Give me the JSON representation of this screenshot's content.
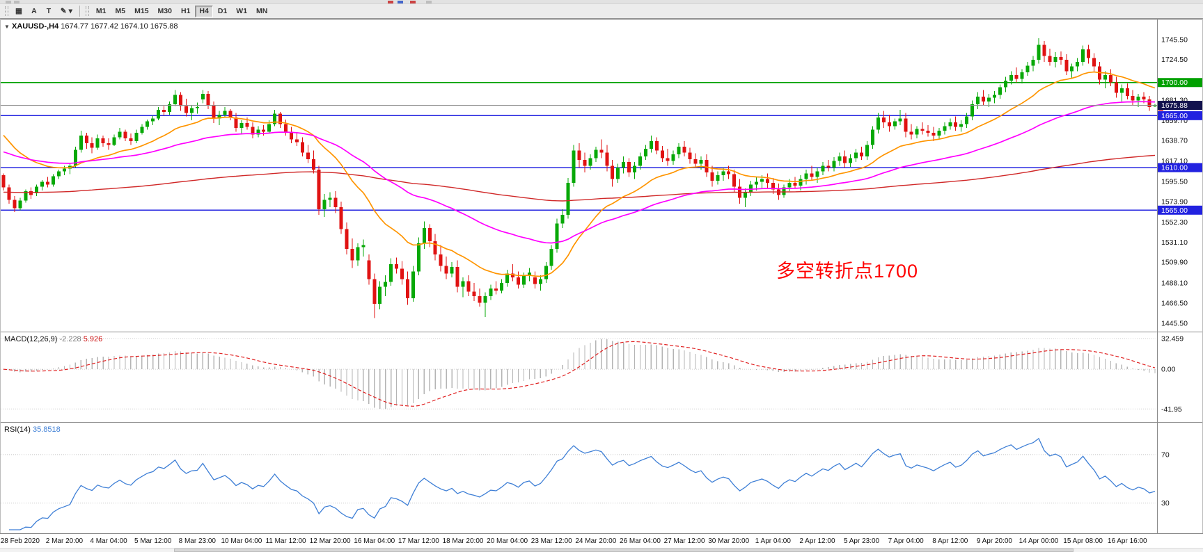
{
  "toolbar": {
    "tools": [
      {
        "name": "templates-grid",
        "label": "▦"
      },
      {
        "name": "label-tool",
        "label": "A"
      },
      {
        "name": "text-tool",
        "label": "T"
      },
      {
        "name": "draw-tool",
        "label": "✎",
        "caret": "▾"
      }
    ],
    "timeframes": [
      "M1",
      "M5",
      "M15",
      "M30",
      "H1",
      "H4",
      "D1",
      "W1",
      "MN"
    ],
    "active_timeframe": "H4"
  },
  "chart": {
    "symbol_title": "XAUUSD-,H4",
    "ohlc_text": "1674.77 1677.42 1674.10 1675.88",
    "up_color": "#07A807",
    "down_color": "#E01212",
    "current_price": {
      "value": 1675.88,
      "label": "1675.88",
      "bg": "#12124E"
    },
    "price_axis": {
      "min": 1438,
      "max": 1766,
      "ticks": [
        1745.5,
        1724.5,
        1681.3,
        1659.7,
        1638.7,
        1617.1,
        1595.5,
        1573.9,
        1552.3,
        1531.1,
        1509.9,
        1488.1,
        1466.5,
        1445.5
      ]
    },
    "hlines": [
      {
        "price": 1700,
        "label": "1700.00",
        "color": "#00A000"
      },
      {
        "price": 1665,
        "label": "1665.00",
        "color": "#2222E0"
      },
      {
        "price": 1610,
        "label": "1610.00",
        "color": "#2222E0"
      },
      {
        "price": 1565,
        "label": "1565.00",
        "color": "#2222E0"
      }
    ],
    "overlays": [
      {
        "name": "ma-slow-line",
        "period": 240,
        "seed": 1584,
        "color": "#D02828",
        "width": 1.4
      },
      {
        "name": "ma-fast-line",
        "period": 20,
        "seed": 1650,
        "color": "#FF9500",
        "width": 1.7
      },
      {
        "name": "ma-mid-line",
        "period": 55,
        "seed": 1628,
        "color": "#FF00FF",
        "width": 1.7
      }
    ],
    "annotation": {
      "text": "多空转折点1700",
      "color": "#FF0000"
    },
    "label_start": 3,
    "label_step": 8,
    "x_labels": [
      "28 Feb 2020",
      "2 Mar 20:00",
      "4 Mar 04:00",
      "5 Mar 12:00",
      "8 Mar 23:00",
      "10 Mar 04:00",
      "11 Mar 12:00",
      "12 Mar 20:00",
      "16 Mar 04:00",
      "17 Mar 12:00",
      "18 Mar 20:00",
      "20 Mar 04:00",
      "23 Mar 12:00",
      "24 Mar 20:00",
      "26 Mar 04:00",
      "27 Mar 12:00",
      "30 Mar 20:00",
      "1 Apr 04:00",
      "2 Apr 12:00",
      "5 Apr 23:00",
      "7 Apr 04:00",
      "8 Apr 12:00",
      "9 Apr 20:00",
      "14 Apr 00:00",
      "15 Apr 08:00",
      "16 Apr 16:00"
    ],
    "candles": [
      [
        1602,
        1604,
        1586,
        1589
      ],
      [
        1589,
        1592,
        1572,
        1576
      ],
      [
        1576,
        1580,
        1563,
        1567
      ],
      [
        1567,
        1578,
        1565,
        1575
      ],
      [
        1575,
        1587,
        1573,
        1585
      ],
      [
        1585,
        1589,
        1577,
        1581
      ],
      [
        1583,
        1592,
        1580,
        1590
      ],
      [
        1590,
        1597,
        1586,
        1595
      ],
      [
        1595,
        1600,
        1589,
        1592
      ],
      [
        1592,
        1603,
        1590,
        1601
      ],
      [
        1601,
        1608,
        1598,
        1606
      ],
      [
        1606,
        1612,
        1602,
        1609
      ],
      [
        1609,
        1615,
        1603,
        1612
      ],
      [
        1612,
        1632,
        1610,
        1629
      ],
      [
        1629,
        1649,
        1626,
        1644
      ],
      [
        1644,
        1647,
        1630,
        1636
      ],
      [
        1636,
        1642,
        1625,
        1631
      ],
      [
        1631,
        1645,
        1629,
        1641
      ],
      [
        1641,
        1644,
        1632,
        1636
      ],
      [
        1636,
        1641,
        1629,
        1634
      ],
      [
        1634,
        1645,
        1633,
        1642
      ],
      [
        1642,
        1652,
        1640,
        1648
      ],
      [
        1648,
        1650,
        1638,
        1641
      ],
      [
        1641,
        1646,
        1634,
        1638
      ],
      [
        1638,
        1650,
        1636,
        1647
      ],
      [
        1647,
        1656,
        1645,
        1653
      ],
      [
        1653,
        1661,
        1650,
        1659
      ],
      [
        1659,
        1665,
        1655,
        1662
      ],
      [
        1662,
        1674,
        1660,
        1671
      ],
      [
        1671,
        1675,
        1665,
        1669
      ],
      [
        1669,
        1680,
        1666,
        1677
      ],
      [
        1677,
        1692,
        1675,
        1687
      ],
      [
        1687,
        1690,
        1670,
        1675
      ],
      [
        1675,
        1683,
        1664,
        1668
      ],
      [
        1668,
        1676,
        1660,
        1673
      ],
      [
        1673,
        1679,
        1667,
        1674
      ],
      [
        1682,
        1692,
        1678,
        1688
      ],
      [
        1688,
        1691,
        1672,
        1676
      ],
      [
        1676,
        1680,
        1657,
        1662
      ],
      [
        1662,
        1670,
        1655,
        1666
      ],
      [
        1666,
        1674,
        1663,
        1670
      ],
      [
        1670,
        1672,
        1660,
        1663
      ],
      [
        1663,
        1668,
        1648,
        1652
      ],
      [
        1652,
        1660,
        1645,
        1657
      ],
      [
        1657,
        1663,
        1650,
        1653
      ],
      [
        1653,
        1658,
        1641,
        1645
      ],
      [
        1645,
        1654,
        1642,
        1650
      ],
      [
        1650,
        1655,
        1644,
        1648
      ],
      [
        1648,
        1660,
        1646,
        1656
      ],
      [
        1656,
        1671,
        1654,
        1667
      ],
      [
        1667,
        1669,
        1652,
        1656
      ],
      [
        1656,
        1661,
        1644,
        1648
      ],
      [
        1648,
        1653,
        1636,
        1640
      ],
      [
        1640,
        1647,
        1633,
        1637
      ],
      [
        1637,
        1642,
        1622,
        1626
      ],
      [
        1626,
        1634,
        1615,
        1619
      ],
      [
        1619,
        1628,
        1604,
        1608
      ],
      [
        1608,
        1612,
        1560,
        1566
      ],
      [
        1566,
        1582,
        1558,
        1576
      ],
      [
        1576,
        1584,
        1568,
        1578
      ],
      [
        1578,
        1585,
        1562,
        1568
      ],
      [
        1568,
        1574,
        1540,
        1545
      ],
      [
        1545,
        1552,
        1518,
        1524
      ],
      [
        1524,
        1535,
        1504,
        1512
      ],
      [
        1512,
        1530,
        1506,
        1526
      ],
      [
        1526,
        1534,
        1516,
        1528
      ],
      [
        1512,
        1518,
        1486,
        1492
      ],
      [
        1492,
        1498,
        1451,
        1466
      ],
      [
        1466,
        1490,
        1460,
        1484
      ],
      [
        1484,
        1496,
        1474,
        1489
      ],
      [
        1489,
        1514,
        1485,
        1508
      ],
      [
        1508,
        1515,
        1498,
        1503
      ],
      [
        1503,
        1511,
        1486,
        1492
      ],
      [
        1492,
        1500,
        1465,
        1472
      ],
      [
        1472,
        1506,
        1468,
        1500
      ],
      [
        1500,
        1536,
        1496,
        1530
      ],
      [
        1530,
        1553,
        1524,
        1546
      ],
      [
        1546,
        1550,
        1526,
        1532
      ],
      [
        1532,
        1540,
        1512,
        1518
      ],
      [
        1518,
        1528,
        1500,
        1506
      ],
      [
        1506,
        1516,
        1492,
        1498
      ],
      [
        1498,
        1510,
        1494,
        1505
      ],
      [
        1505,
        1512,
        1478,
        1484
      ],
      [
        1484,
        1494,
        1473,
        1490
      ],
      [
        1490,
        1496,
        1474,
        1479
      ],
      [
        1479,
        1488,
        1469,
        1474
      ],
      [
        1474,
        1482,
        1463,
        1467
      ],
      [
        1467,
        1478,
        1452,
        1474
      ],
      [
        1474,
        1486,
        1470,
        1482
      ],
      [
        1482,
        1490,
        1476,
        1480
      ],
      [
        1480,
        1492,
        1477,
        1488
      ],
      [
        1488,
        1502,
        1484,
        1498
      ],
      [
        1498,
        1508,
        1490,
        1494
      ],
      [
        1494,
        1500,
        1482,
        1486
      ],
      [
        1486,
        1499,
        1483,
        1496
      ],
      [
        1496,
        1504,
        1490,
        1499
      ],
      [
        1494,
        1500,
        1482,
        1487
      ],
      [
        1487,
        1496,
        1480,
        1492
      ],
      [
        1492,
        1510,
        1488,
        1506
      ],
      [
        1506,
        1528,
        1502,
        1524
      ],
      [
        1524,
        1556,
        1520,
        1551
      ],
      [
        1551,
        1566,
        1546,
        1560
      ],
      [
        1560,
        1599,
        1556,
        1594
      ],
      [
        1594,
        1634,
        1590,
        1628
      ],
      [
        1628,
        1636,
        1610,
        1618
      ],
      [
        1618,
        1626,
        1605,
        1612
      ],
      [
        1612,
        1624,
        1608,
        1620
      ],
      [
        1620,
        1632,
        1616,
        1629
      ],
      [
        1629,
        1640,
        1620,
        1626
      ],
      [
        1626,
        1634,
        1606,
        1612
      ],
      [
        1612,
        1618,
        1590,
        1598
      ],
      [
        1598,
        1614,
        1594,
        1610
      ],
      [
        1610,
        1622,
        1604,
        1616
      ],
      [
        1616,
        1620,
        1600,
        1605
      ],
      [
        1605,
        1616,
        1598,
        1612
      ],
      [
        1612,
        1626,
        1608,
        1622
      ],
      [
        1622,
        1634,
        1618,
        1630
      ],
      [
        1630,
        1644,
        1626,
        1638
      ],
      [
        1638,
        1642,
        1624,
        1628
      ],
      [
        1628,
        1633,
        1616,
        1620
      ],
      [
        1620,
        1630,
        1612,
        1617
      ],
      [
        1617,
        1628,
        1613,
        1624
      ],
      [
        1624,
        1636,
        1620,
        1632
      ],
      [
        1632,
        1638,
        1622,
        1626
      ],
      [
        1626,
        1631,
        1614,
        1619
      ],
      [
        1619,
        1625,
        1610,
        1614
      ],
      [
        1614,
        1622,
        1608,
        1618
      ],
      [
        1618,
        1624,
        1600,
        1605
      ],
      [
        1605,
        1612,
        1590,
        1596
      ],
      [
        1596,
        1606,
        1592,
        1602
      ],
      [
        1602,
        1610,
        1596,
        1606
      ],
      [
        1606,
        1612,
        1598,
        1603
      ],
      [
        1603,
        1608,
        1584,
        1590
      ],
      [
        1590,
        1598,
        1572,
        1578
      ],
      [
        1578,
        1588,
        1568,
        1584
      ],
      [
        1584,
        1596,
        1580,
        1592
      ],
      [
        1592,
        1600,
        1586,
        1595
      ],
      [
        1595,
        1602,
        1588,
        1598
      ],
      [
        1598,
        1604,
        1588,
        1594
      ],
      [
        1594,
        1599,
        1582,
        1587
      ],
      [
        1587,
        1593,
        1576,
        1581
      ],
      [
        1581,
        1592,
        1578,
        1589
      ],
      [
        1589,
        1598,
        1585,
        1594
      ],
      [
        1594,
        1600,
        1588,
        1591
      ],
      [
        1591,
        1602,
        1586,
        1598
      ],
      [
        1598,
        1608,
        1592,
        1604
      ],
      [
        1604,
        1612,
        1596,
        1600
      ],
      [
        1600,
        1610,
        1594,
        1606
      ],
      [
        1606,
        1616,
        1602,
        1612
      ],
      [
        1612,
        1618,
        1606,
        1610
      ],
      [
        1610,
        1621,
        1606,
        1617
      ],
      [
        1617,
        1626,
        1612,
        1622
      ],
      [
        1622,
        1628,
        1610,
        1615
      ],
      [
        1615,
        1624,
        1611,
        1620
      ],
      [
        1620,
        1630,
        1616,
        1626
      ],
      [
        1626,
        1632,
        1618,
        1622
      ],
      [
        1622,
        1638,
        1618,
        1634
      ],
      [
        1634,
        1654,
        1630,
        1650
      ],
      [
        1650,
        1668,
        1646,
        1663
      ],
      [
        1663,
        1670,
        1652,
        1658
      ],
      [
        1658,
        1666,
        1648,
        1654
      ],
      [
        1654,
        1662,
        1650,
        1659
      ],
      [
        1659,
        1671,
        1655,
        1662
      ],
      [
        1662,
        1668,
        1642,
        1648
      ],
      [
        1648,
        1656,
        1640,
        1645
      ],
      [
        1645,
        1654,
        1641,
        1651
      ],
      [
        1651,
        1658,
        1645,
        1649
      ],
      [
        1649,
        1655,
        1643,
        1647
      ],
      [
        1647,
        1653,
        1638,
        1644
      ],
      [
        1644,
        1652,
        1640,
        1649
      ],
      [
        1649,
        1658,
        1645,
        1654
      ],
      [
        1654,
        1662,
        1650,
        1658
      ],
      [
        1658,
        1664,
        1649,
        1653
      ],
      [
        1653,
        1660,
        1648,
        1656
      ],
      [
        1656,
        1668,
        1652,
        1664
      ],
      [
        1664,
        1681,
        1660,
        1677
      ],
      [
        1677,
        1690,
        1672,
        1685
      ],
      [
        1685,
        1692,
        1676,
        1680
      ],
      [
        1680,
        1688,
        1674,
        1684
      ],
      [
        1684,
        1691,
        1678,
        1687
      ],
      [
        1687,
        1698,
        1683,
        1695
      ],
      [
        1695,
        1706,
        1690,
        1702
      ],
      [
        1702,
        1712,
        1698,
        1708
      ],
      [
        1708,
        1716,
        1700,
        1704
      ],
      [
        1704,
        1714,
        1699,
        1711
      ],
      [
        1711,
        1722,
        1707,
        1718
      ],
      [
        1718,
        1728,
        1712,
        1724
      ],
      [
        1724,
        1747,
        1720,
        1740
      ],
      [
        1740,
        1744,
        1722,
        1728
      ],
      [
        1728,
        1736,
        1718,
        1722
      ],
      [
        1722,
        1732,
        1716,
        1727
      ],
      [
        1727,
        1733,
        1719,
        1724
      ],
      [
        1724,
        1730,
        1708,
        1712
      ],
      [
        1712,
        1720,
        1704,
        1717
      ],
      [
        1717,
        1726,
        1712,
        1722
      ],
      [
        1722,
        1739,
        1718,
        1735
      ],
      [
        1735,
        1740,
        1720,
        1726
      ],
      [
        1726,
        1731,
        1712,
        1717
      ],
      [
        1717,
        1722,
        1698,
        1703
      ],
      [
        1703,
        1712,
        1694,
        1708
      ],
      [
        1708,
        1714,
        1696,
        1700
      ],
      [
        1700,
        1706,
        1684,
        1689
      ],
      [
        1689,
        1698,
        1680,
        1694
      ],
      [
        1694,
        1699,
        1682,
        1686
      ],
      [
        1686,
        1692,
        1676,
        1681
      ],
      [
        1681,
        1688,
        1674,
        1685
      ],
      [
        1685,
        1690,
        1678,
        1682
      ],
      [
        1682,
        1686,
        1670,
        1674
      ],
      [
        1674.77,
        1677.42,
        1674.1,
        1675.88
      ]
    ]
  },
  "macd": {
    "label": "MACD(12,26,9)",
    "value_main": "-2.228",
    "value_signal": "5.926",
    "fast": 12,
    "slow": 26,
    "signal": 9,
    "hist_color": "#B4B4B4",
    "signal_color": "#E02020",
    "axis": {
      "min": -52,
      "max": 36,
      "ticks": [
        {
          "v": 32.459,
          "label": "32.459"
        },
        {
          "v": 0,
          "label": "0.00"
        },
        {
          "v": -41.95,
          "label": "-41.95"
        }
      ]
    }
  },
  "rsi": {
    "label": "RSI(14)",
    "value": "35.8518",
    "period": 14,
    "levels": [
      70,
      30
    ],
    "line_color": "#3E7FD6",
    "axis": {
      "min": 8,
      "max": 94
    }
  }
}
